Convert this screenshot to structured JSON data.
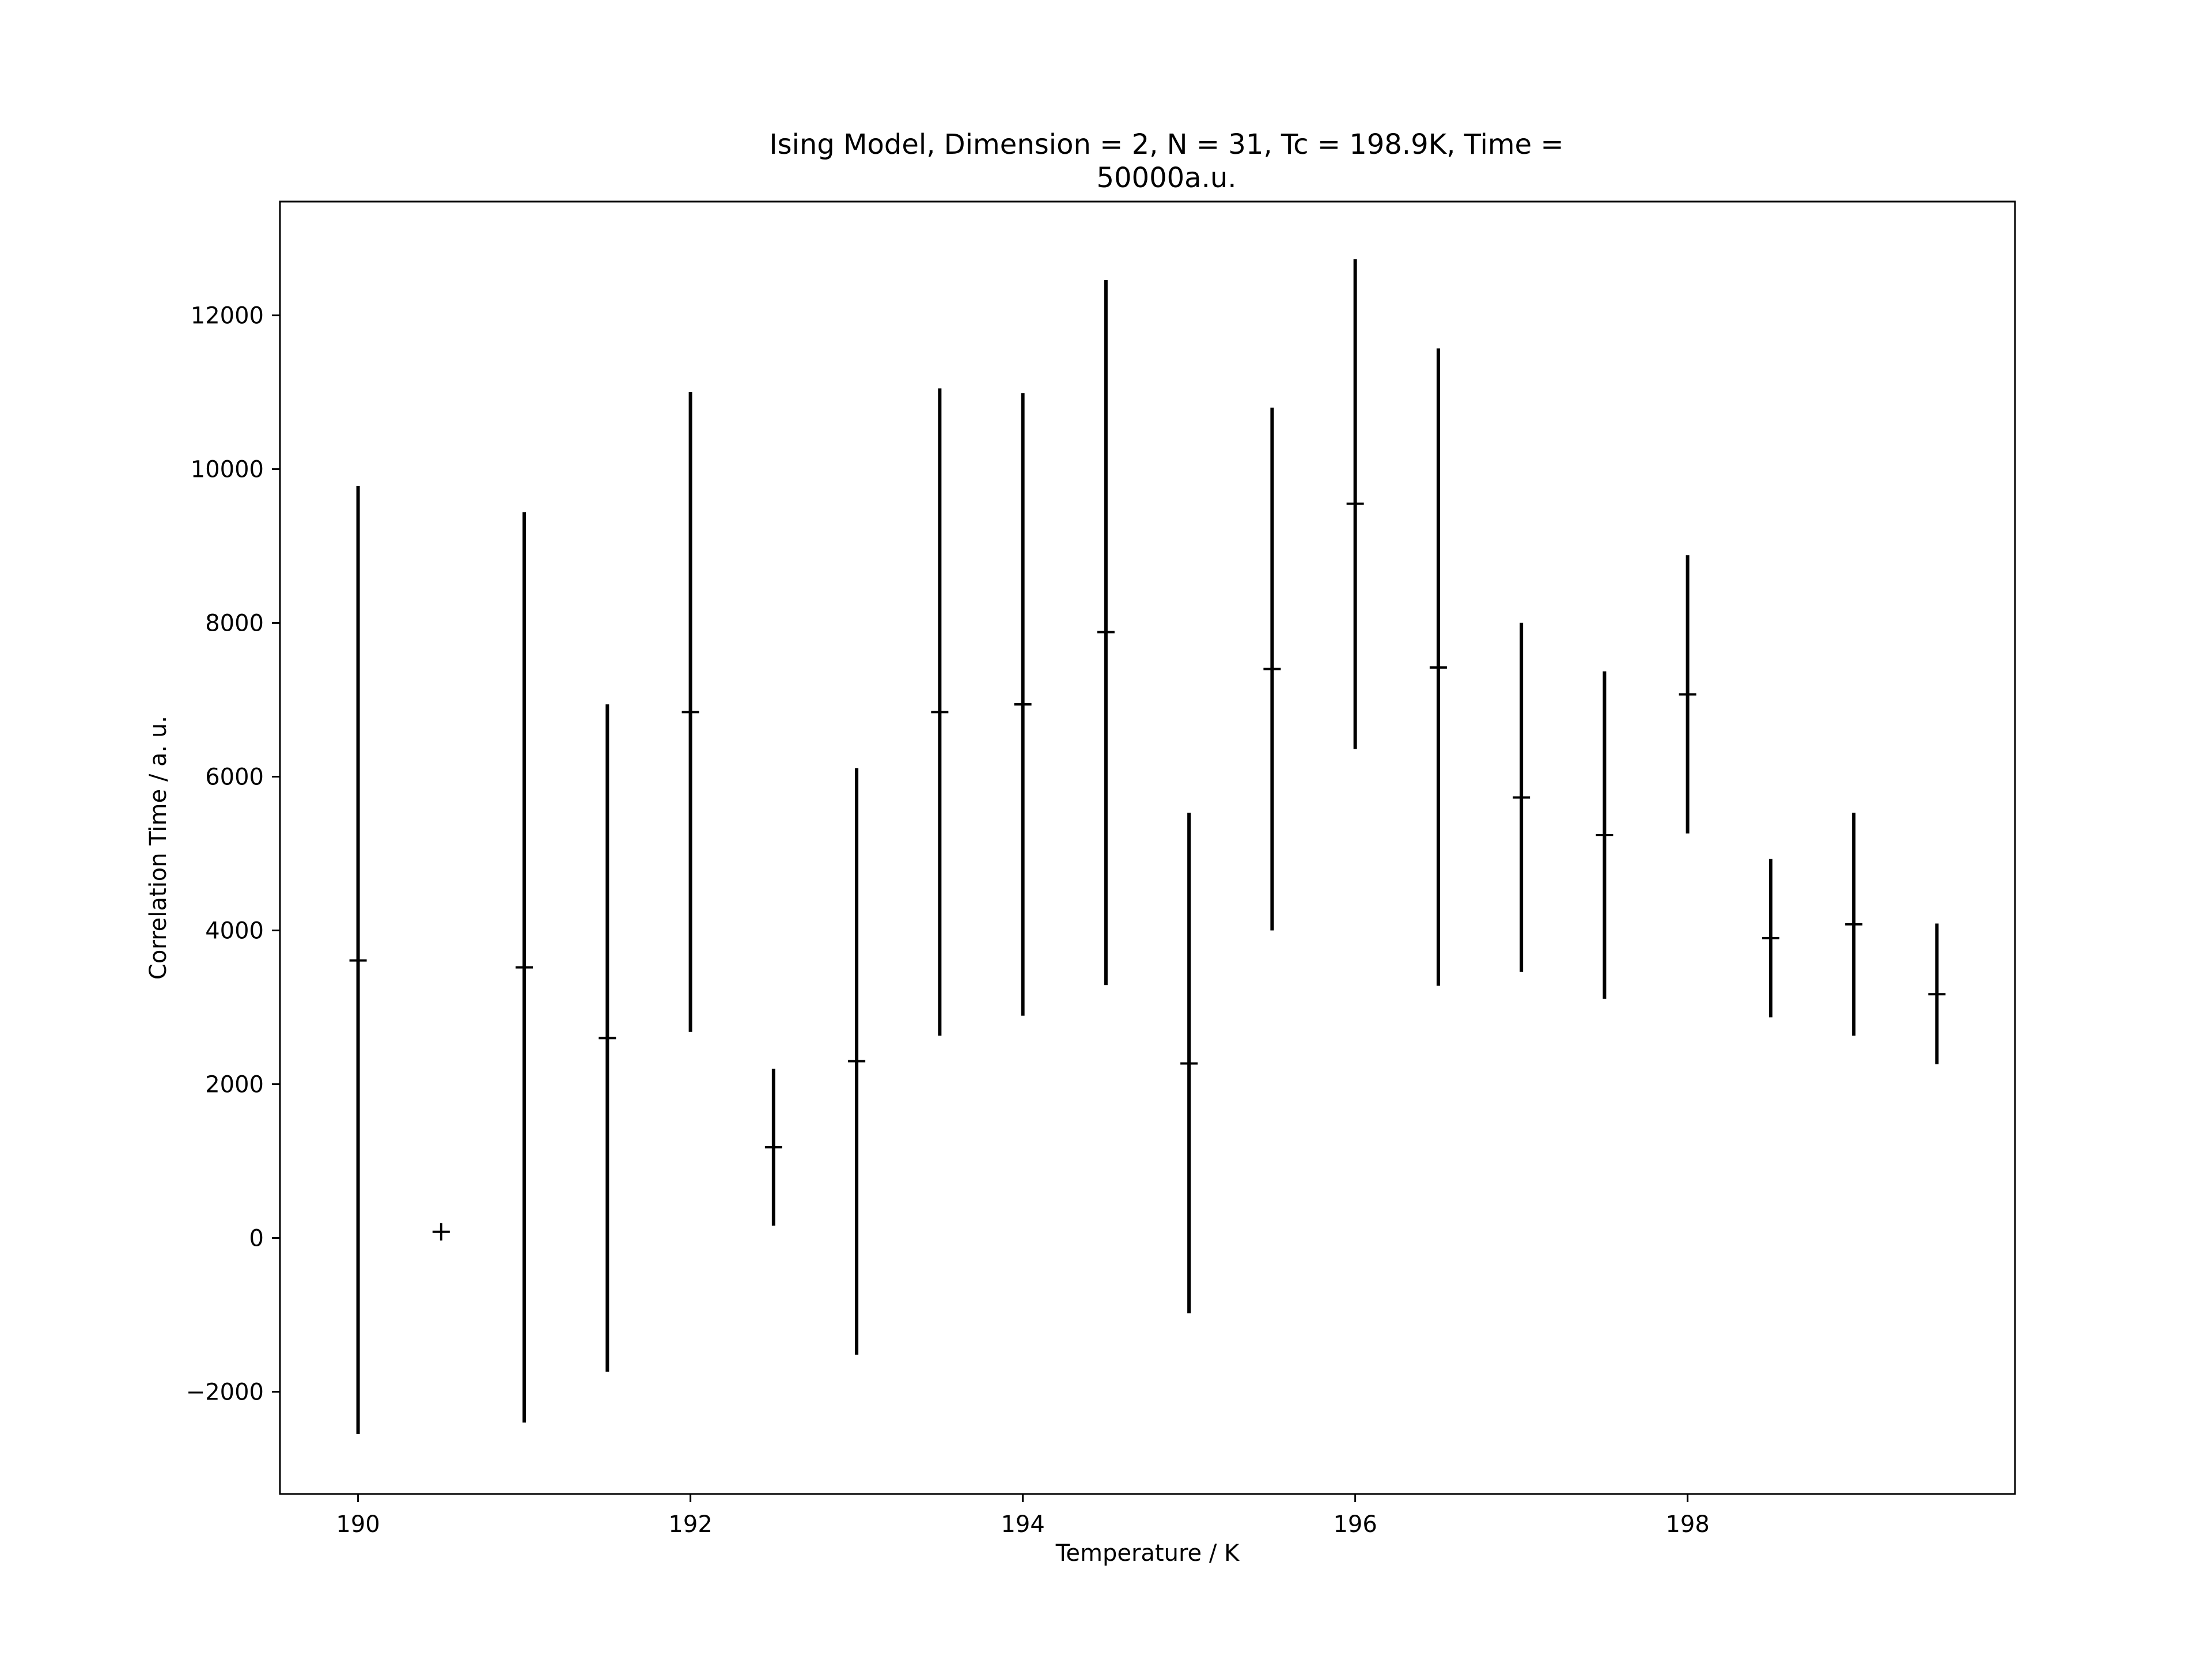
{
  "chart_data": {
    "type": "scatter",
    "title_lines": [
      "Ising Model, Dimension = 2, N = 31, Tc = 198.9K, Time =",
      "50000a.u."
    ],
    "xlabel": "Temperature / K",
    "ylabel": "Correlation Time / a. u.",
    "xlim": [
      189.53,
      199.97
    ],
    "ylim": [
      -3330,
      13480
    ],
    "xticks": [
      190,
      192,
      194,
      196,
      198
    ],
    "yticks": [
      -2000,
      0,
      2000,
      4000,
      6000,
      8000,
      10000,
      12000
    ],
    "xtick_labels": [
      "190",
      "192",
      "194",
      "196",
      "198"
    ],
    "ytick_labels": [
      "−2000",
      "0",
      "2000",
      "4000",
      "6000",
      "8000",
      "10000",
      "12000"
    ],
    "grid": false,
    "legend": "none",
    "color": "#000000",
    "points": [
      {
        "x": 190.0,
        "y": 3610,
        "low": -2550,
        "high": 9780
      },
      {
        "x": 190.5,
        "y": 80,
        "low": 80,
        "high": 80
      },
      {
        "x": 191.0,
        "y": 3520,
        "low": -2400,
        "high": 9440
      },
      {
        "x": 191.5,
        "y": 2600,
        "low": -1740,
        "high": 6940
      },
      {
        "x": 192.0,
        "y": 6840,
        "low": 2680,
        "high": 11000
      },
      {
        "x": 192.5,
        "y": 1180,
        "low": 160,
        "high": 2200
      },
      {
        "x": 193.0,
        "y": 2300,
        "low": -1520,
        "high": 6110
      },
      {
        "x": 193.5,
        "y": 6840,
        "low": 2630,
        "high": 11050
      },
      {
        "x": 194.0,
        "y": 6940,
        "low": 2890,
        "high": 10990
      },
      {
        "x": 194.5,
        "y": 7880,
        "low": 3290,
        "high": 12460
      },
      {
        "x": 195.0,
        "y": 2270,
        "low": -980,
        "high": 5530
      },
      {
        "x": 195.5,
        "y": 7400,
        "low": 4000,
        "high": 10800
      },
      {
        "x": 196.0,
        "y": 9550,
        "low": 6360,
        "high": 12730
      },
      {
        "x": 196.5,
        "y": 7420,
        "low": 3280,
        "high": 11570
      },
      {
        "x": 197.0,
        "y": 5730,
        "low": 3460,
        "high": 8000
      },
      {
        "x": 197.5,
        "y": 5240,
        "low": 3110,
        "high": 7370
      },
      {
        "x": 198.0,
        "y": 7070,
        "low": 5260,
        "high": 8880
      },
      {
        "x": 198.5,
        "y": 3900,
        "low": 2870,
        "high": 4930
      },
      {
        "x": 199.0,
        "y": 4080,
        "low": 2630,
        "high": 5530
      },
      {
        "x": 199.5,
        "y": 3170,
        "low": 2260,
        "high": 4090
      }
    ]
  }
}
